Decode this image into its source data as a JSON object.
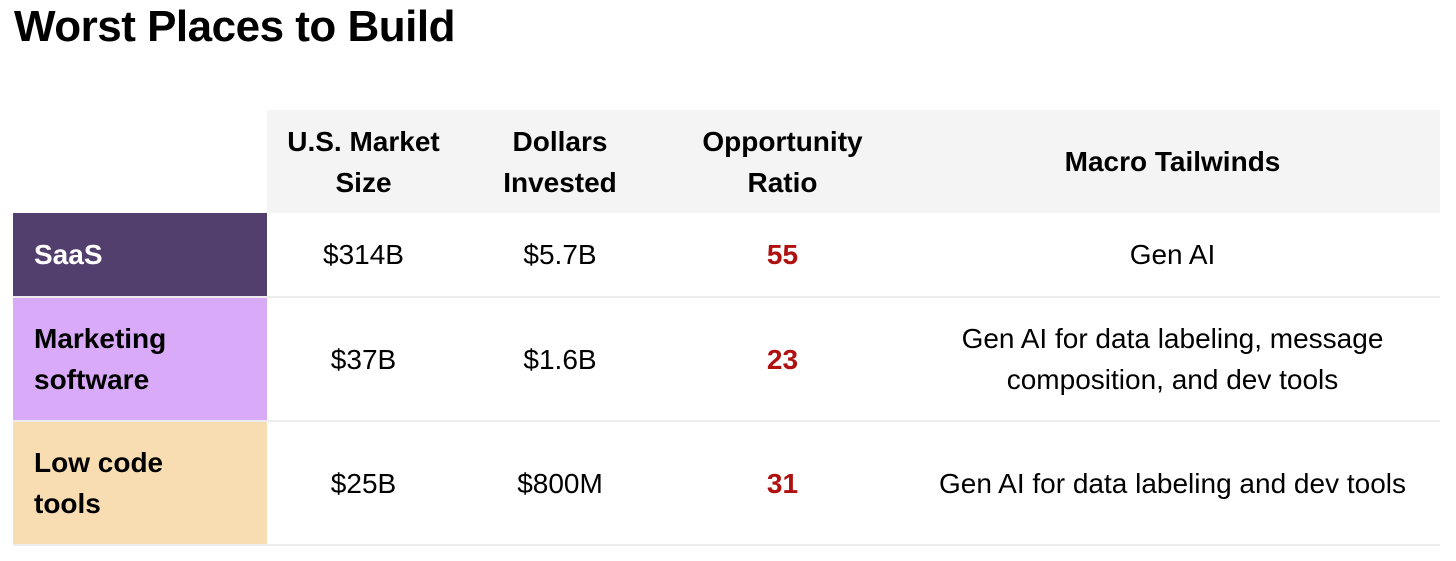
{
  "title": "Worst Places to Build",
  "table": {
    "columns": [
      "U.S. Market Size",
      "Dollars Invested",
      "Opportunity Ratio",
      "Macro Tailwinds"
    ],
    "rows": [
      [
        "SaaS",
        "$314B",
        "$5.7B",
        55,
        "Gen AI"
      ],
      [
        "Marketing software",
        "$37B",
        "$1.6B",
        23,
        "Gen AI for data labeling, message composition, and dev tools"
      ],
      [
        "Low code tools",
        "$25B",
        "$800M",
        31,
        "Gen AI for data labeling and dev tools"
      ]
    ]
  }
}
